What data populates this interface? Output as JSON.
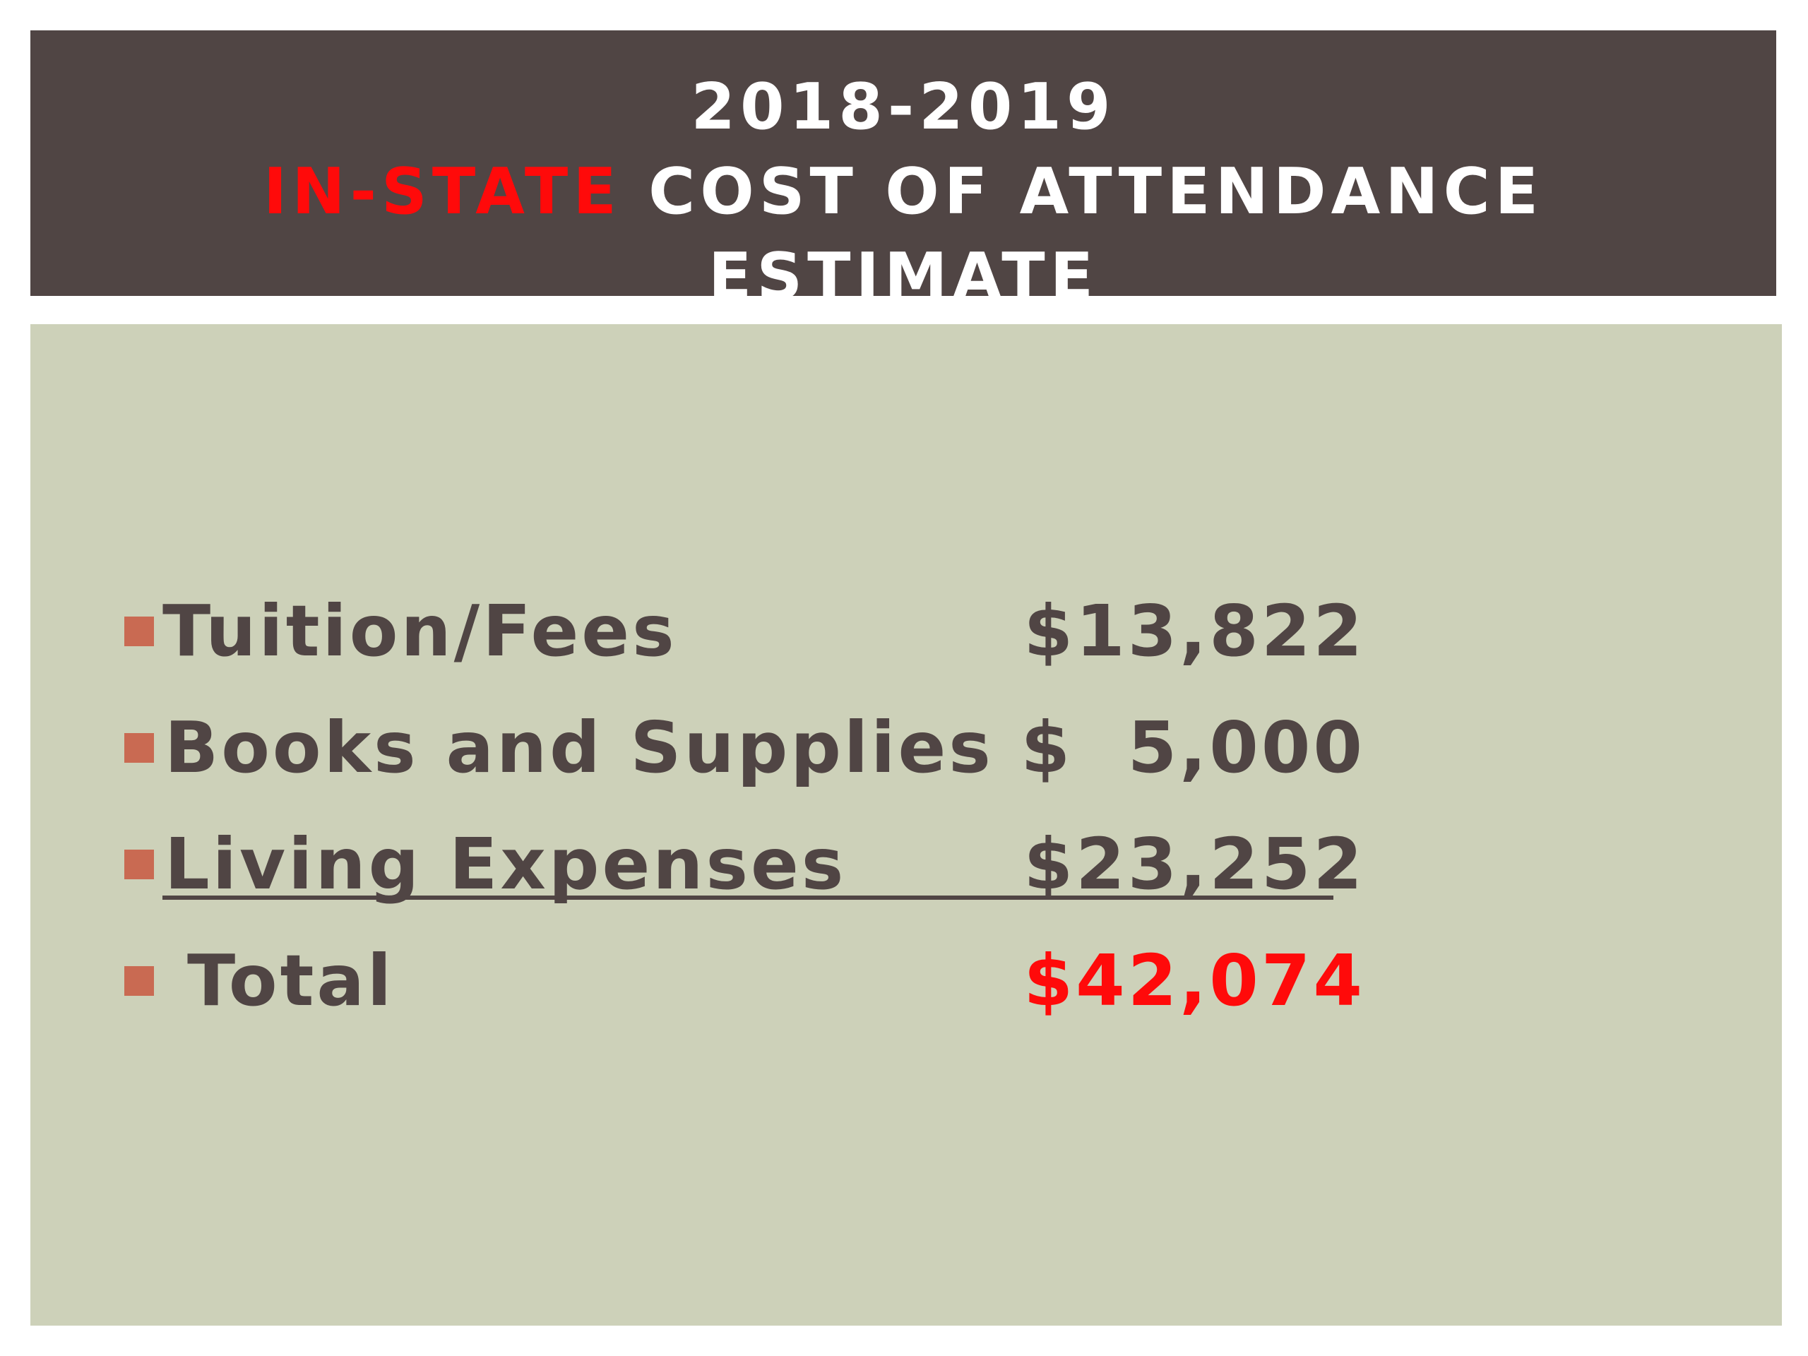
{
  "title": {
    "year": "2018-2019",
    "accent": "IN-STATE",
    "rest": "COST OF ATTENDANCE",
    "last": "ESTIMATE"
  },
  "items": [
    {
      "label": "Tuition/Fees",
      "amount": "$13,822"
    },
    {
      "label": "Books and Supplies",
      "amount": "$  5,000"
    },
    {
      "label": "Living Expenses",
      "amount": "$23,252"
    },
    {
      "label": "Total",
      "amount": "$42,074"
    }
  ],
  "colors": {
    "title_background": "#504544",
    "content_background": "#cdd1b9",
    "accent": "#ff0a0a",
    "bullet": "#c96a52",
    "text": "#504544"
  }
}
